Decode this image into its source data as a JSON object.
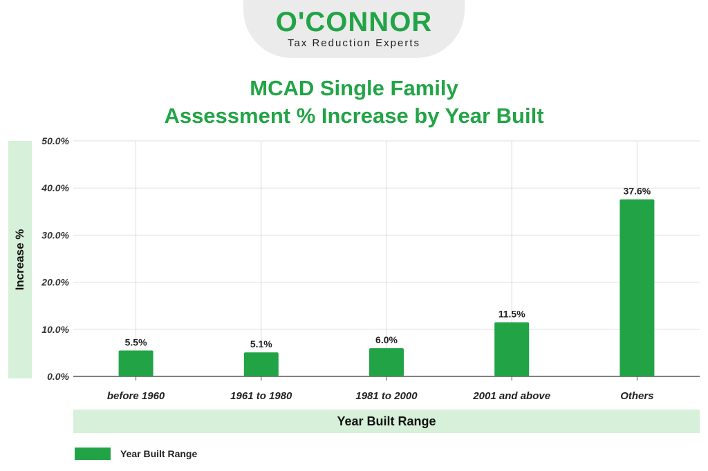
{
  "logo": {
    "name": "O'CONNOR",
    "tagline": "Tax Reduction Experts"
  },
  "colors": {
    "bar": "#22a446",
    "title": "#22a446",
    "label_band": "#d7f0d9",
    "grid": "#dddddd"
  },
  "chart_data": {
    "type": "bar",
    "title_lines": [
      "MCAD Single Family",
      "Assessment % Increase by Year Built"
    ],
    "categories": [
      "before 1960",
      "1961 to 1980",
      "1981 to 2000",
      "2001 and above",
      "Others"
    ],
    "series": [
      {
        "name": "Year Built Range",
        "values": [
          5.5,
          5.1,
          6.0,
          11.5,
          37.6
        ]
      }
    ],
    "data_labels": [
      "5.5%",
      "5.1%",
      "6.0%",
      "11.5%",
      "37.6%"
    ],
    "xlabel": "Year Built Range",
    "ylabel": "Increase %",
    "ylim": [
      0,
      50
    ],
    "yticks": [
      0,
      10,
      20,
      30,
      40,
      50
    ],
    "ytick_labels": [
      "0.0%",
      "10.0%",
      "20.0%",
      "30.0%",
      "40.0%",
      "50.0%"
    ],
    "grid": true,
    "legend_position": "bottom-left"
  }
}
